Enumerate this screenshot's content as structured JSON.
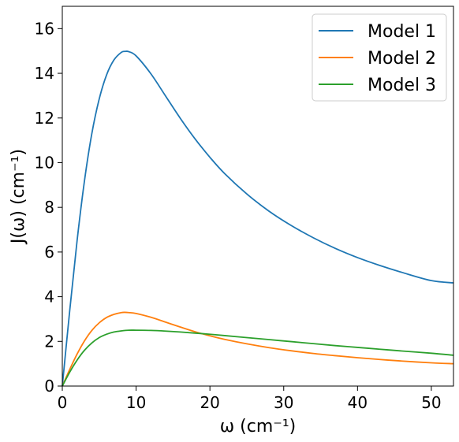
{
  "chart_data": {
    "type": "line",
    "xlabel": "ω (cm⁻¹)",
    "ylabel": "J(ω) (cm⁻¹)",
    "xlim": [
      0,
      53
    ],
    "ylim": [
      0,
      17
    ],
    "xticks": [
      0,
      10,
      20,
      30,
      40,
      50
    ],
    "yticks": [
      0,
      2,
      4,
      6,
      8,
      10,
      12,
      14,
      16
    ],
    "grid": false,
    "legend_position": "top-right",
    "series": [
      {
        "name": "Model 1",
        "color": "#1f77b4",
        "x": [
          0,
          1,
          2,
          3,
          4,
          5,
          6,
          7,
          8,
          8.5,
          9,
          10,
          12,
          14,
          16,
          18,
          20,
          22,
          25,
          28,
          31,
          34,
          37,
          40,
          43,
          46,
          50,
          53
        ],
        "y": [
          0,
          3.36,
          6.5,
          9.18,
          11.3,
          12.85,
          13.93,
          14.6,
          14.94,
          14.98,
          14.97,
          14.78,
          13.98,
          12.98,
          11.98,
          11.06,
          10.24,
          9.51,
          8.6,
          7.83,
          7.19,
          6.64,
          6.16,
          5.75,
          5.4,
          5.09,
          4.72,
          4.62
        ]
      },
      {
        "name": "Model 2",
        "color": "#ff7f0e",
        "x": [
          0,
          1,
          2,
          3,
          4,
          5,
          6,
          7,
          8,
          8.5,
          9,
          10,
          12,
          14,
          16,
          18,
          20,
          22,
          25,
          28,
          31,
          34,
          37,
          40,
          43,
          46,
          50,
          53
        ],
        "y": [
          0,
          0.74,
          1.43,
          2.02,
          2.49,
          2.83,
          3.07,
          3.21,
          3.29,
          3.3,
          3.29,
          3.25,
          3.08,
          2.86,
          2.64,
          2.43,
          2.25,
          2.09,
          1.89,
          1.72,
          1.58,
          1.46,
          1.36,
          1.27,
          1.19,
          1.12,
          1.04,
          1.0
        ]
      },
      {
        "name": "Model 3",
        "color": "#2ca02c",
        "x": [
          0,
          1,
          2,
          3,
          4,
          5,
          6,
          7,
          8,
          9,
          10,
          12,
          14,
          16,
          18,
          20,
          22,
          25,
          28,
          31,
          34,
          37,
          40,
          43,
          46,
          50,
          53
        ],
        "y": [
          0,
          0.62,
          1.16,
          1.6,
          1.93,
          2.17,
          2.32,
          2.42,
          2.47,
          2.5,
          2.5,
          2.49,
          2.46,
          2.42,
          2.37,
          2.32,
          2.26,
          2.17,
          2.08,
          1.99,
          1.9,
          1.81,
          1.73,
          1.65,
          1.57,
          1.47,
          1.38
        ]
      }
    ]
  }
}
